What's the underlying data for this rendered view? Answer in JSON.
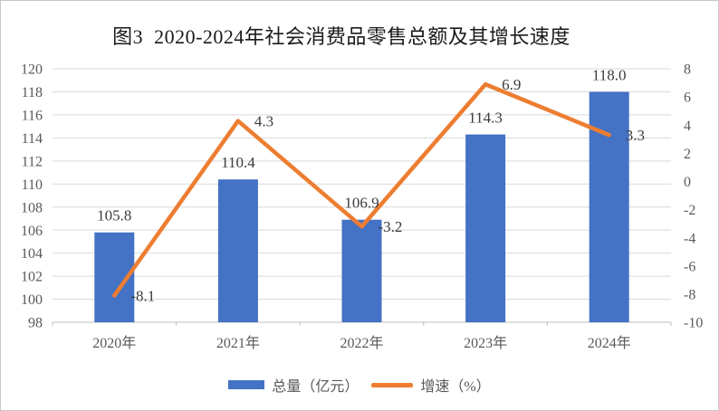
{
  "chart": {
    "title": "图3  2020-2024年社会消费品零售总额及其增长速度",
    "colors": {
      "bar": "#4472C4",
      "line": "#ED7D31",
      "gridline": "#D9D9D9",
      "axis_line": "#BFBFBF",
      "tick_label": "#595959",
      "data_label": "#3B3B3B",
      "title": "#1A1A1A"
    },
    "chart_data": {
      "type": "bar+line combo",
      "title": "图3  2020-2024年社会消费品零售总额及其增长速度",
      "categories": [
        "2020年",
        "2021年",
        "2022年",
        "2023年",
        "2024年"
      ],
      "series": [
        {
          "name": "总量（亿元）",
          "type": "bar",
          "axis": "left",
          "values": [
            105.8,
            110.4,
            106.9,
            114.3,
            118.0
          ],
          "labels": [
            "105.8",
            "110.4",
            "106.9",
            "114.3",
            "118.0"
          ]
        },
        {
          "name": "增速（%）",
          "type": "line",
          "axis": "right",
          "values": [
            -8.1,
            4.3,
            -3.2,
            6.9,
            3.3
          ],
          "labels": [
            "-8.1",
            "4.3",
            "-3.2",
            "6.9",
            "3.3"
          ]
        }
      ],
      "left_axis": {
        "min": 98,
        "max": 120,
        "step": 2,
        "ticks": [
          "98",
          "100",
          "102",
          "104",
          "106",
          "108",
          "110",
          "112",
          "114",
          "116",
          "118",
          "120"
        ]
      },
      "right_axis": {
        "min": -10,
        "max": 8,
        "step": 2,
        "ticks": [
          "-10",
          "-8",
          "-6",
          "-4",
          "-2",
          "0",
          "2",
          "4",
          "6",
          "8"
        ]
      },
      "grid": true,
      "legend_position": "bottom"
    },
    "legend": {
      "bar_label": "总量（亿元）",
      "line_label": "增速（%）"
    }
  }
}
